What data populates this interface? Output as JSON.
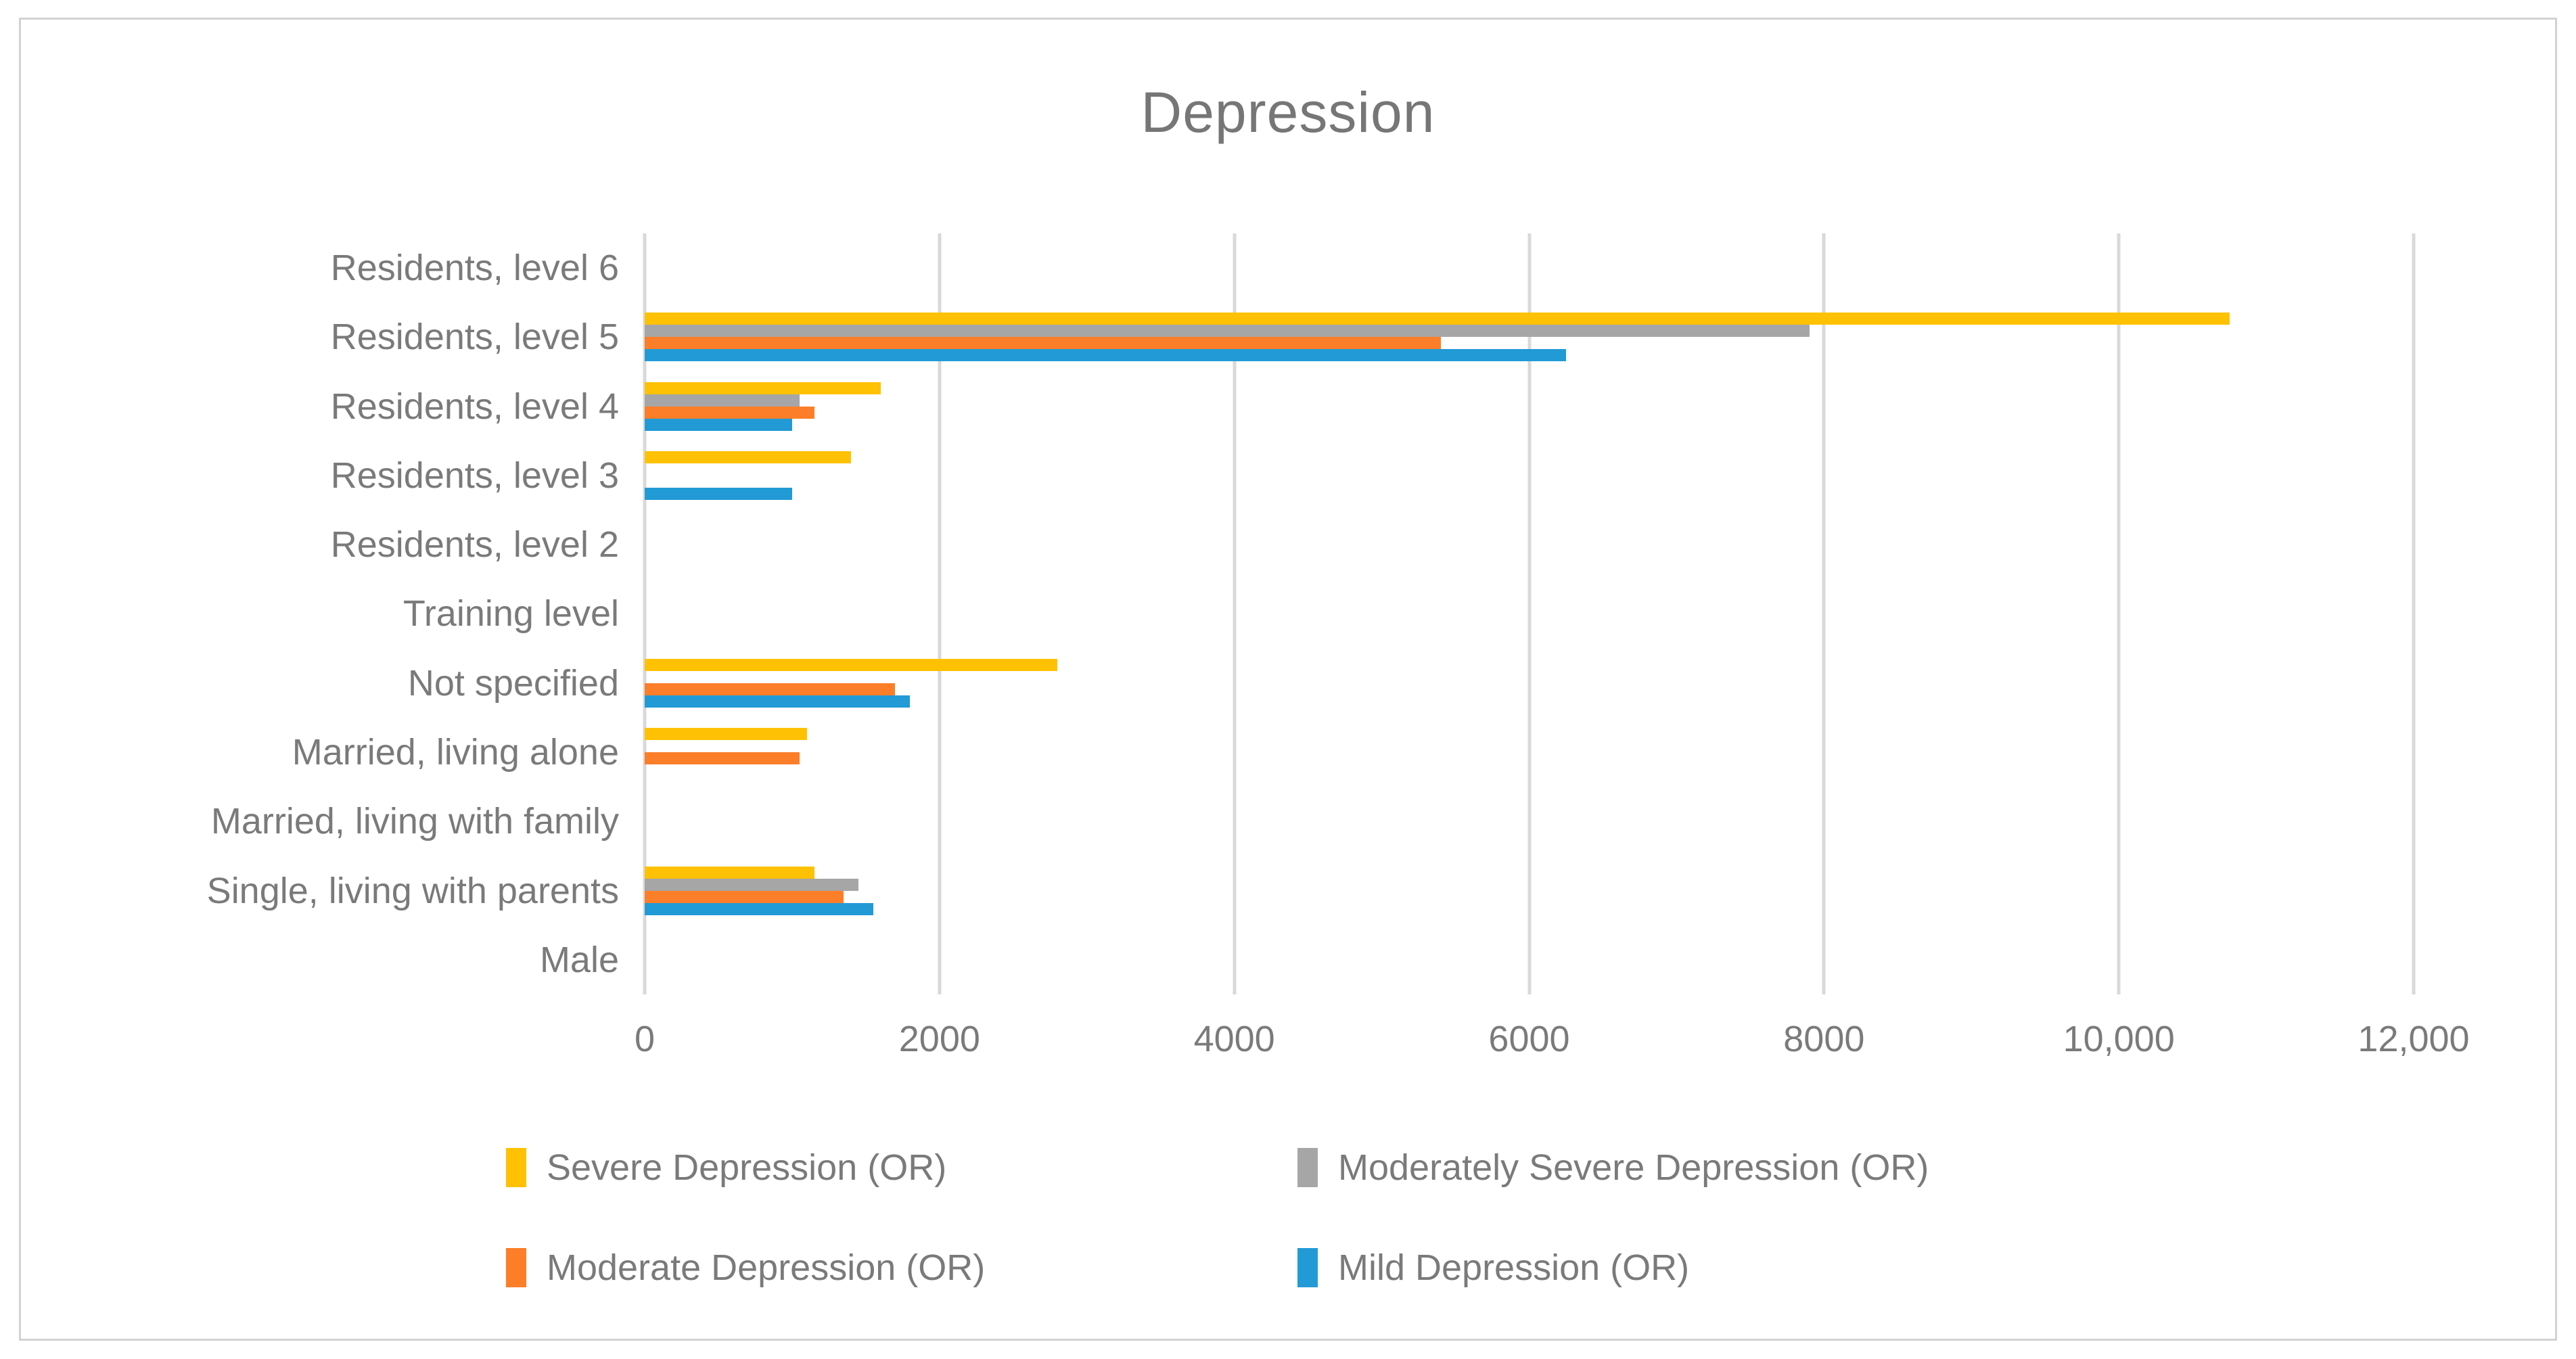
{
  "chart": {
    "title": "Depression"
  },
  "chart_data": {
    "type": "bar",
    "orientation": "horizontal",
    "title": "Depression",
    "xlabel": "",
    "ylabel": "",
    "xlim": [
      0,
      12000
    ],
    "grid": "vertical-major-gridlines",
    "legend_position": "bottom",
    "x_ticks": [
      {
        "value": 0,
        "label": "0"
      },
      {
        "value": 2000,
        "label": "2000"
      },
      {
        "value": 4000,
        "label": "4000"
      },
      {
        "value": 6000,
        "label": "6000"
      },
      {
        "value": 8000,
        "label": "8000"
      },
      {
        "value": 10000,
        "label": "10,000"
      },
      {
        "value": 12000,
        "label": "12,000"
      }
    ],
    "categories": [
      "Residents, level 6",
      "Residents, level 5",
      "Residents, level 4",
      "Residents, level 3",
      "Residents, level 2",
      "Training level",
      "Not specified",
      "Married, living alone",
      "Married, living with family",
      "Single, living with parents",
      "Male"
    ],
    "series": [
      {
        "name": "Severe Depression (OR)",
        "color": "#FFC103",
        "values": [
          0,
          10750,
          1600,
          1400,
          0,
          0,
          2800,
          1100,
          0,
          1150,
          0
        ]
      },
      {
        "name": "Moderately Severe Depression (OR)",
        "color": "#A6A6A6",
        "values": [
          0,
          7900,
          1050,
          0,
          0,
          0,
          0,
          0,
          0,
          1450,
          0
        ]
      },
      {
        "name": "Moderate Depression (OR)",
        "color": "#FC7E28",
        "values": [
          0,
          5400,
          1150,
          0,
          0,
          0,
          1700,
          1050,
          0,
          1350,
          0
        ]
      },
      {
        "name": "Mild Depression (OR)",
        "color": "#219AD6",
        "values": [
          0,
          6250,
          1000,
          1000,
          0,
          0,
          1800,
          0,
          0,
          1550,
          0
        ]
      }
    ]
  }
}
